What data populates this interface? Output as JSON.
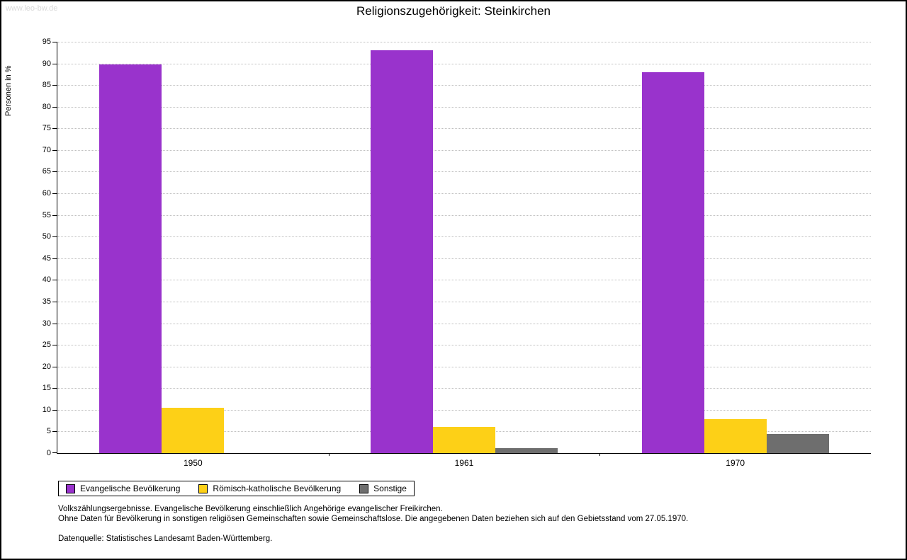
{
  "watermark": "www.leo-bw.de",
  "title": "Religionszugehörigkeit: Steinkirchen",
  "chart_data": {
    "type": "bar",
    "title": "Religionszugehörigkeit: Steinkirchen",
    "xlabel": "",
    "ylabel": "Personen in %",
    "ylim": [
      0,
      95
    ],
    "ytick_step": 5,
    "grid": true,
    "legend_position": "bottom",
    "categories": [
      "1950",
      "1961",
      "1970"
    ],
    "series": [
      {
        "name": "Evangelische Bevölkerung",
        "color": "#9933cc",
        "values": [
          89.7,
          93.0,
          88.0
        ]
      },
      {
        "name": "Römisch-katholische Bevölkerung",
        "color": "#fdd017",
        "values": [
          10.4,
          6.0,
          7.9
        ]
      },
      {
        "name": "Sonstige",
        "color": "#6e6e6e",
        "values": [
          0,
          1.2,
          4.4
        ]
      }
    ]
  },
  "footer": {
    "line1": "Volkszählungsergebnisse. Evangelische Bevölkerung einschließlich Angehörige evangelischer Freikirchen.",
    "line2": "Ohne Daten für Bevölkerung in sonstigen religiösen Gemeinschaften sowie Gemeinschaftslose. Die angegebenen Daten beziehen sich auf den Gebietsstand vom 27.05.1970.",
    "line3": "Datenquelle: Statistisches Landesamt Baden-Württemberg."
  }
}
